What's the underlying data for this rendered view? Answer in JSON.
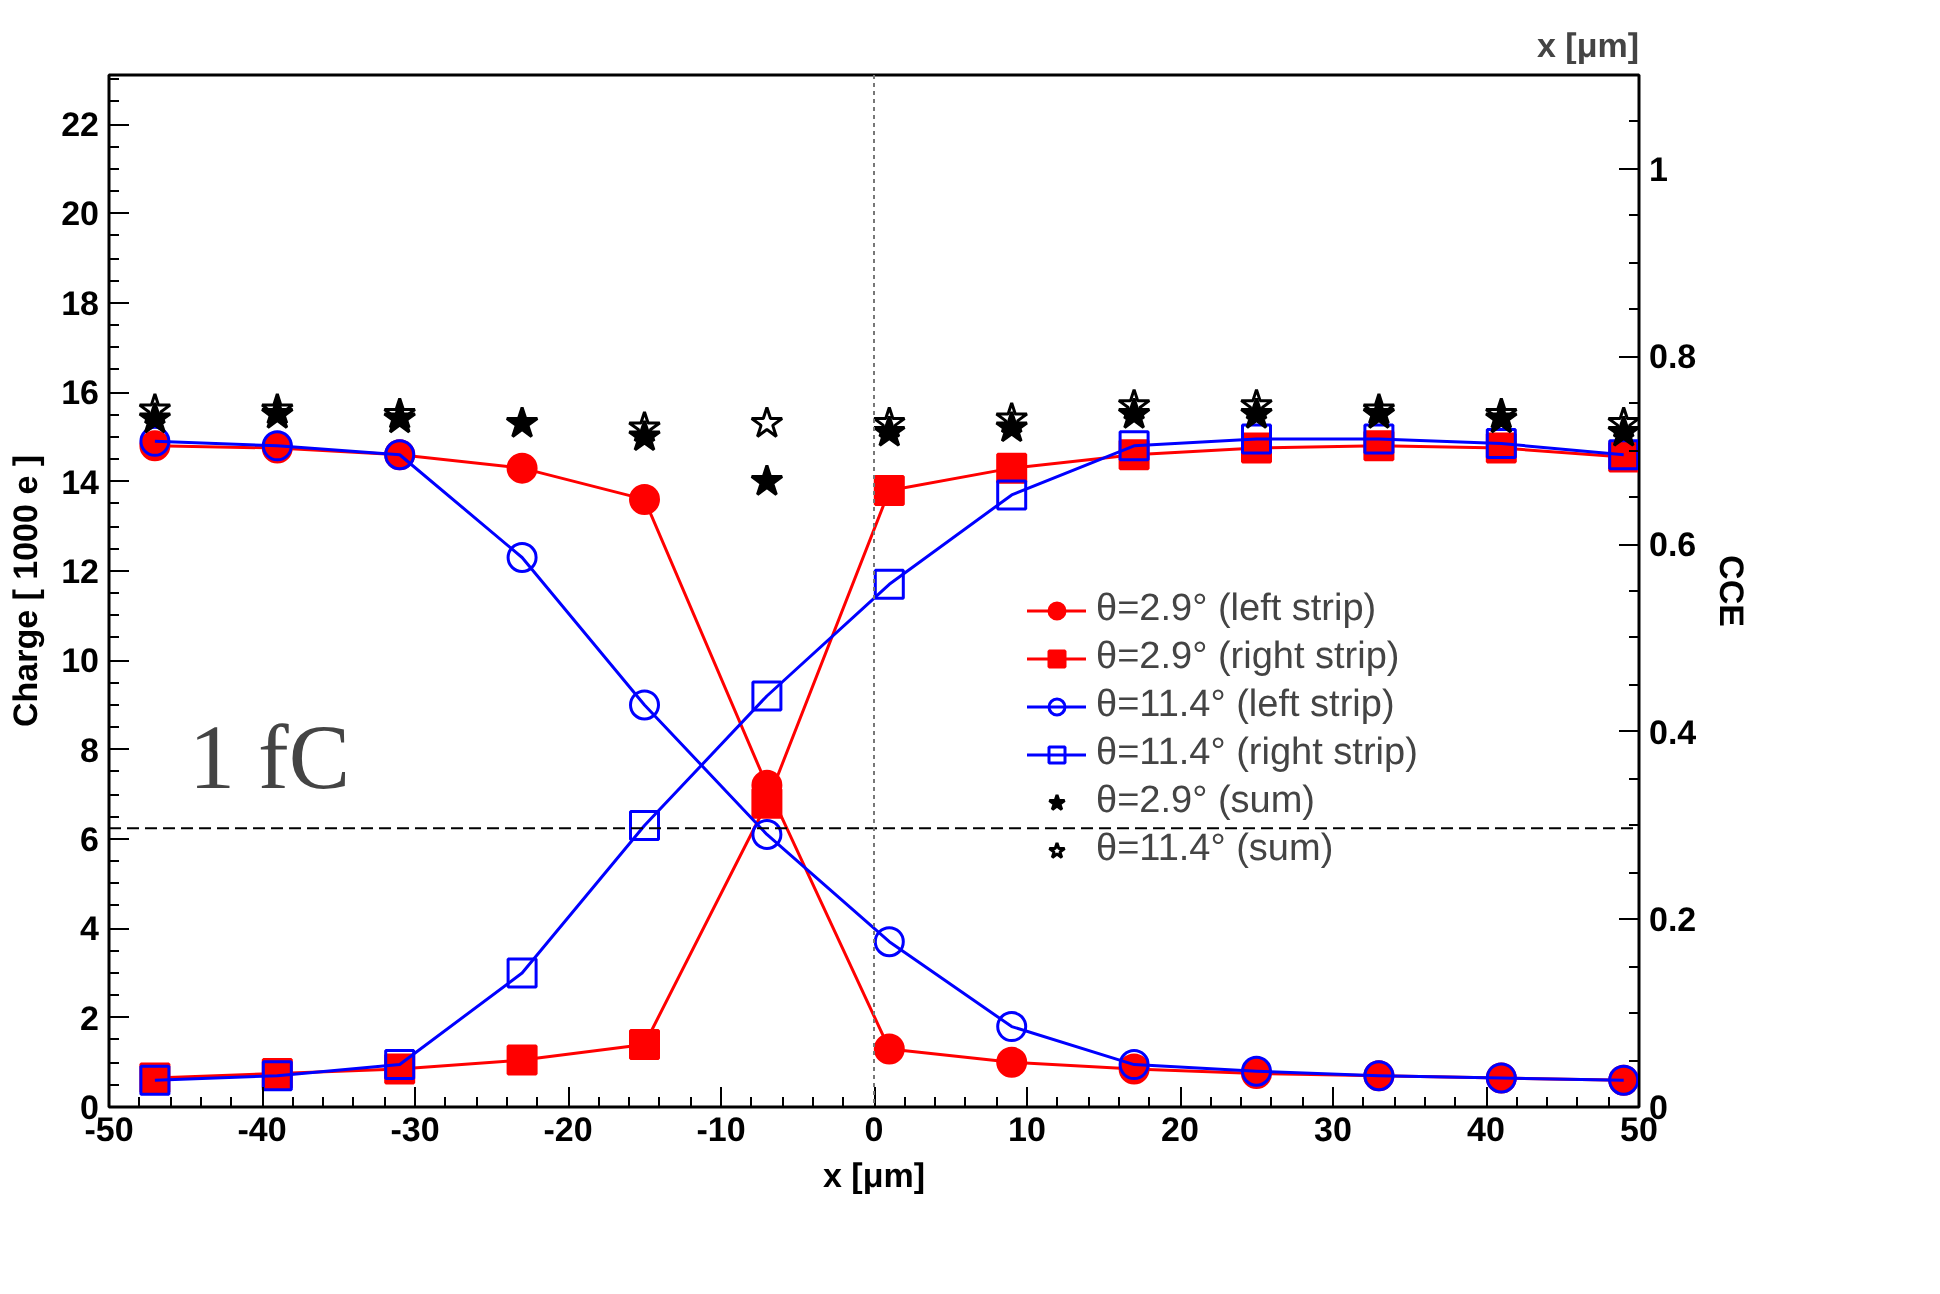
{
  "chart_data": {
    "type": "line",
    "xlabel": "x [μm]",
    "x2label": "x [μm]",
    "ylabel": "Charge [ 1000 e ]",
    "y2label": "CCE",
    "x": [
      -47,
      -39,
      -31,
      -23,
      -15,
      -7,
      1,
      9,
      17,
      25,
      33,
      41,
      49
    ],
    "xlim": [
      -50,
      50
    ],
    "xticks": [
      -50,
      -40,
      -30,
      -20,
      -10,
      0,
      10,
      20,
      30,
      40,
      50
    ],
    "ylim": [
      0,
      23.1
    ],
    "yticks": [
      0,
      2,
      4,
      6,
      8,
      10,
      12,
      14,
      16,
      18,
      20,
      22
    ],
    "y2lim": [
      0,
      1.1
    ],
    "y2ticks": [
      0,
      0.2,
      0.4,
      0.6,
      0.8,
      1
    ],
    "grid": false,
    "legend": "right",
    "line_style": "solid",
    "series": [
      {
        "name": "θ=2.9° (left strip)",
        "color": "#ff0000",
        "marker": "circle",
        "values": [
          14.8,
          14.75,
          14.6,
          14.3,
          13.6,
          7.2,
          1.3,
          1.0,
          0.85,
          0.75,
          0.7,
          0.65,
          0.6
        ]
      },
      {
        "name": "θ=2.9° (right strip)",
        "color": "#ff0000",
        "marker": "square",
        "values": [
          0.65,
          0.75,
          0.85,
          1.05,
          1.4,
          6.8,
          13.8,
          14.3,
          14.6,
          14.75,
          14.8,
          14.75,
          14.55
        ]
      },
      {
        "name": "θ=11.4° (left strip)",
        "color": "#0000ff",
        "marker": "circle_open",
        "values": [
          14.9,
          14.8,
          14.6,
          12.3,
          9.0,
          6.1,
          3.7,
          1.8,
          0.95,
          0.8,
          0.7,
          0.65,
          0.6
        ]
      },
      {
        "name": "θ=11.4° (right strip)",
        "color": "#0000ff",
        "marker": "square_open",
        "values": [
          0.6,
          0.7,
          0.95,
          3.0,
          6.3,
          9.2,
          11.7,
          13.7,
          14.8,
          14.95,
          14.95,
          14.85,
          14.6
        ]
      },
      {
        "name": "θ=2.9° (sum)",
        "type": "scatter",
        "color": "#000000",
        "marker": "star",
        "values": [
          15.4,
          15.5,
          15.4,
          15.3,
          15.0,
          14.0,
          15.1,
          15.2,
          15.5,
          15.5,
          15.5,
          15.4,
          15.1
        ]
      },
      {
        "name": "θ=11.4° (sum)",
        "type": "scatter",
        "color": "#000000",
        "marker": "star_open",
        "values": [
          15.6,
          15.6,
          15.5,
          null,
          15.2,
          15.3,
          15.3,
          15.4,
          15.7,
          15.7,
          15.6,
          15.5,
          15.3
        ]
      }
    ],
    "ref_lines": [
      {
        "axis": "y",
        "value": 6.24,
        "label": "1 fC",
        "line_style": "dashed",
        "color": "#000000"
      },
      {
        "axis": "x",
        "value": 0,
        "line_style": "dotted",
        "color": "#777777"
      }
    ]
  }
}
